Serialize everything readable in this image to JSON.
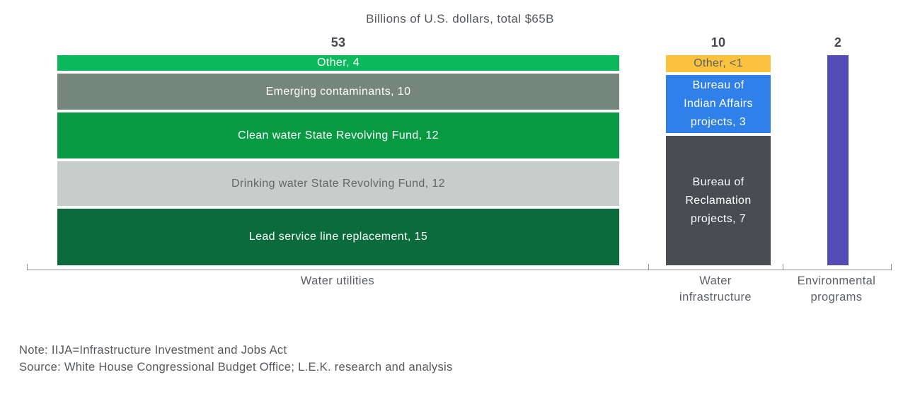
{
  "title": "Billions of U.S. dollars, total $65B",
  "footer": {
    "note": "Note: IIJA=Infrastructure Investment and Jobs Act",
    "source": "Source: White House Congressional Budget Office; L.E.K. research and analysis"
  },
  "chart_data": {
    "type": "bar",
    "variant": "marimekko-stacked",
    "title": "Billions of U.S. dollars, total $65B",
    "unit": "Billions of U.S. dollars",
    "grand_total_label": "$65B",
    "grand_total_value": 65,
    "bar_widths_proportional_to_total": true,
    "legend": "none",
    "categories": [
      "Water utilities",
      "Water infrastructure",
      "Environmental programs"
    ],
    "bars": [
      {
        "category": "Water utilities",
        "category_lines": [
          "Water utilities"
        ],
        "total": 53,
        "segments": [
          {
            "name": "Other",
            "label": "Other, 4",
            "value": 4,
            "color": "#0cb85c",
            "text_color": "#ffffff"
          },
          {
            "name": "Emerging contaminants",
            "label": "Emerging contaminants, 10",
            "value": 10,
            "color": "#75867d",
            "text_color": "#ffffff"
          },
          {
            "name": "Clean water State Revolving Fund",
            "label": "Clean water State Revolving Fund, 12",
            "value": 12,
            "color": "#089a42",
            "text_color": "#ffffff"
          },
          {
            "name": "Drinking water State Revolving Fund",
            "label": "Drinking water State Revolving Fund, 12",
            "value": 12,
            "color": "#c6cdcb",
            "text_color": "#5e6a64"
          },
          {
            "name": "Lead service line replacement",
            "label": "Lead service line replacement, 15",
            "value": 15,
            "color": "#0b6b3c",
            "text_color": "#ffffff"
          }
        ]
      },
      {
        "category": "Water infrastructure",
        "category_lines": [
          "Water",
          "infrastructure"
        ],
        "total": 10,
        "segments": [
          {
            "name": "Other",
            "label": "Other, <1",
            "value": "<1",
            "color": "#fcc23d",
            "text_color": "#565f66"
          },
          {
            "name": "Bureau of Indian Affairs projects",
            "label": "Bureau of Indian Affairs projects, 3",
            "label_lines": [
              "Bureau of",
              "Indian Affairs",
              "projects, 3"
            ],
            "value": 3,
            "color": "#2f80e8",
            "text_color": "#ffffff"
          },
          {
            "name": "Bureau of Reclamation projects",
            "label": "Bureau of Reclamation projects, 7",
            "label_lines": [
              "Bureau of",
              "Reclamation",
              "projects, 7"
            ],
            "value": 7,
            "color": "#474d53",
            "text_color": "#ffffff"
          }
        ]
      },
      {
        "category": "Environmental programs",
        "category_lines": [
          "Environmental",
          "programs"
        ],
        "total": 2,
        "segments": [
          {
            "name": "Environmental programs",
            "label": "",
            "value": 2,
            "color": "#544cb6",
            "text_color": "#ffffff"
          }
        ]
      }
    ]
  }
}
